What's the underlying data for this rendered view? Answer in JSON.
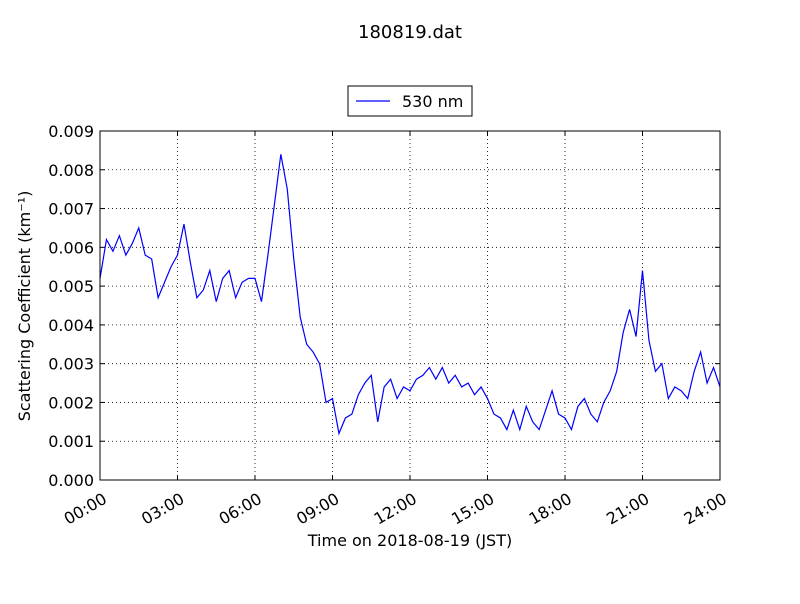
{
  "chart_data": {
    "type": "line",
    "title": "180819.dat",
    "xlabel": "Time on 2018-08-19 (JST)",
    "ylabel": "Scattering Coefficient (km⁻¹)",
    "legend": "top-center",
    "grid": true,
    "xlim": [
      0,
      24
    ],
    "xticks": [
      {
        "value": 0,
        "label": "00:00"
      },
      {
        "value": 3,
        "label": "03:00"
      },
      {
        "value": 6,
        "label": "06:00"
      },
      {
        "value": 9,
        "label": "09:00"
      },
      {
        "value": 12,
        "label": "12:00"
      },
      {
        "value": 15,
        "label": "15:00"
      },
      {
        "value": 18,
        "label": "18:00"
      },
      {
        "value": 21,
        "label": "21:00"
      },
      {
        "value": 24,
        "label": "24:00"
      }
    ],
    "ylim": [
      0,
      0.009
    ],
    "yticks": [
      {
        "value": 0,
        "label": "0.000"
      },
      {
        "value": 0.001,
        "label": "0.001"
      },
      {
        "value": 0.002,
        "label": "0.002"
      },
      {
        "value": 0.003,
        "label": "0.003"
      },
      {
        "value": 0.004,
        "label": "0.004"
      },
      {
        "value": 0.005,
        "label": "0.005"
      },
      {
        "value": 0.006,
        "label": "0.006"
      },
      {
        "value": 0.007,
        "label": "0.007"
      },
      {
        "value": 0.008,
        "label": "0.008"
      },
      {
        "value": 0.009,
        "label": "0.009"
      }
    ],
    "x": [
      0,
      0.25,
      0.5,
      0.75,
      1,
      1.25,
      1.5,
      1.75,
      2,
      2.25,
      2.5,
      2.75,
      3,
      3.25,
      3.5,
      3.75,
      4,
      4.25,
      4.5,
      4.75,
      5,
      5.25,
      5.5,
      5.75,
      6,
      6.25,
      6.5,
      6.75,
      7,
      7.25,
      7.5,
      7.75,
      8,
      8.25,
      8.5,
      8.75,
      9,
      9.25,
      9.5,
      9.75,
      10,
      10.25,
      10.5,
      10.75,
      11,
      11.25,
      11.5,
      11.75,
      12,
      12.25,
      12.5,
      12.75,
      13,
      13.25,
      13.5,
      13.75,
      14,
      14.25,
      14.5,
      14.75,
      15,
      15.25,
      15.5,
      15.75,
      16,
      16.25,
      16.5,
      16.75,
      17,
      17.25,
      17.5,
      17.75,
      18,
      18.25,
      18.5,
      18.75,
      19,
      19.25,
      19.5,
      19.75,
      20,
      20.25,
      20.5,
      20.75,
      21,
      21.25,
      21.5,
      21.75,
      22,
      22.25,
      22.5,
      22.75,
      23,
      23.25,
      23.5,
      23.75,
      24
    ],
    "series": [
      {
        "name": "530 nm",
        "color": "#0000ff",
        "values": [
          0.0052,
          0.0062,
          0.0059,
          0.0063,
          0.0058,
          0.0061,
          0.0065,
          0.0058,
          0.0057,
          0.0047,
          0.0051,
          0.0055,
          0.0058,
          0.0066,
          0.0056,
          0.0047,
          0.0049,
          0.0054,
          0.0046,
          0.0052,
          0.0054,
          0.0047,
          0.0051,
          0.0052,
          0.0052,
          0.0046,
          0.0058,
          0.0071,
          0.0084,
          0.0075,
          0.0057,
          0.0042,
          0.0035,
          0.0033,
          0.003,
          0.002,
          0.0021,
          0.0012,
          0.0016,
          0.0017,
          0.0022,
          0.0025,
          0.0027,
          0.0015,
          0.0024,
          0.0026,
          0.0021,
          0.0024,
          0.0023,
          0.0026,
          0.0027,
          0.0029,
          0.0026,
          0.0029,
          0.0025,
          0.0027,
          0.0024,
          0.0025,
          0.0022,
          0.0024,
          0.0021,
          0.0017,
          0.0016,
          0.0013,
          0.0018,
          0.0013,
          0.0019,
          0.0015,
          0.0013,
          0.0018,
          0.0023,
          0.0017,
          0.0016,
          0.0013,
          0.0019,
          0.0021,
          0.0017,
          0.0015,
          0.002,
          0.0023,
          0.0028,
          0.0038,
          0.0044,
          0.0037,
          0.0054,
          0.0036,
          0.0028,
          0.003,
          0.0021,
          0.0024,
          0.0023,
          0.0021,
          0.0028,
          0.0033,
          0.0025,
          0.0029,
          0.0024
        ]
      }
    ]
  }
}
